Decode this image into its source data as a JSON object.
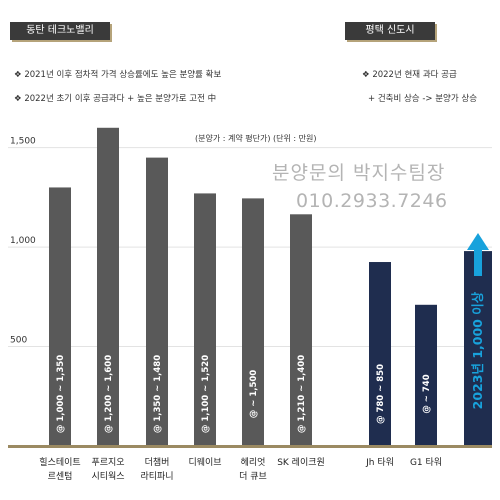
{
  "left_panel": {
    "tag": "동탄 테크노밸리",
    "bullets": [
      "❖  2021년 이후 점차적 가격 상승률에도 높은 분양률 확보",
      "❖  2022년 초기 이후 공급과다 + 높은 분양가로 고전 中"
    ]
  },
  "right_panel": {
    "tag": "평택 신도시",
    "bullets": [
      "❖  2022년 현재 과다 공급",
      "+ 건축비 상승 -> 분양가 상승"
    ]
  },
  "units_note": "(분양가 : 계약 평단가)     (단위 : 만원)",
  "watermark": {
    "line1": "분양문의 박지수팀장",
    "line2": "010.2933.7246"
  },
  "colors": {
    "dongtan_bar": "#595959",
    "pyeongtaek_bar": "#1f2d4f",
    "arrow": "#18a2dc",
    "baseline": "#9b8a62",
    "grid": "#e3e3e3"
  },
  "chart_data": {
    "type": "bar",
    "yticks": [
      "1,500",
      "1,000",
      "500"
    ],
    "ytick_values": [
      1500,
      1000,
      500
    ],
    "ylim": [
      0,
      1800
    ],
    "grid": true,
    "categories": [
      {
        "label1": "힐스테이트",
        "label2": "르센텀",
        "value": 1300,
        "range": "@ 1,000 ~ 1,350",
        "group": "dongtan"
      },
      {
        "label1": "푸르지오",
        "label2": "시티웍스",
        "value": 1600,
        "range": "@ 1,200 ~ 1,600",
        "group": "dongtan"
      },
      {
        "label1": "더챔버",
        "label2": "라티파니",
        "value": 1450,
        "range": "@ 1,350 ~ 1,480",
        "group": "dongtan"
      },
      {
        "label1": "디웨이브",
        "label2": "",
        "value": 1270,
        "range": "@ 1,100 ~ 1,520",
        "group": "dongtan"
      },
      {
        "label1": "헤리엇",
        "label2": "더 큐브",
        "value": 1245,
        "range": "@ ~ 1,500",
        "group": "dongtan"
      },
      {
        "label1": "SK 레이크원",
        "label2": "",
        "value": 1165,
        "range": "@ 1,210 ~ 1,400",
        "group": "dongtan"
      },
      {
        "label1": "Jh 타워",
        "label2": "",
        "value": 925,
        "range": "@ 780 ~ 850",
        "group": "pyeongtaek"
      },
      {
        "label1": "G1 타워",
        "label2": "",
        "value": 710,
        "range": "@ ~ 740",
        "group": "pyeongtaek"
      },
      {
        "label1": "",
        "label2": "",
        "value": 980,
        "range": "2023년 1,000 이상",
        "group": "future"
      }
    ]
  }
}
